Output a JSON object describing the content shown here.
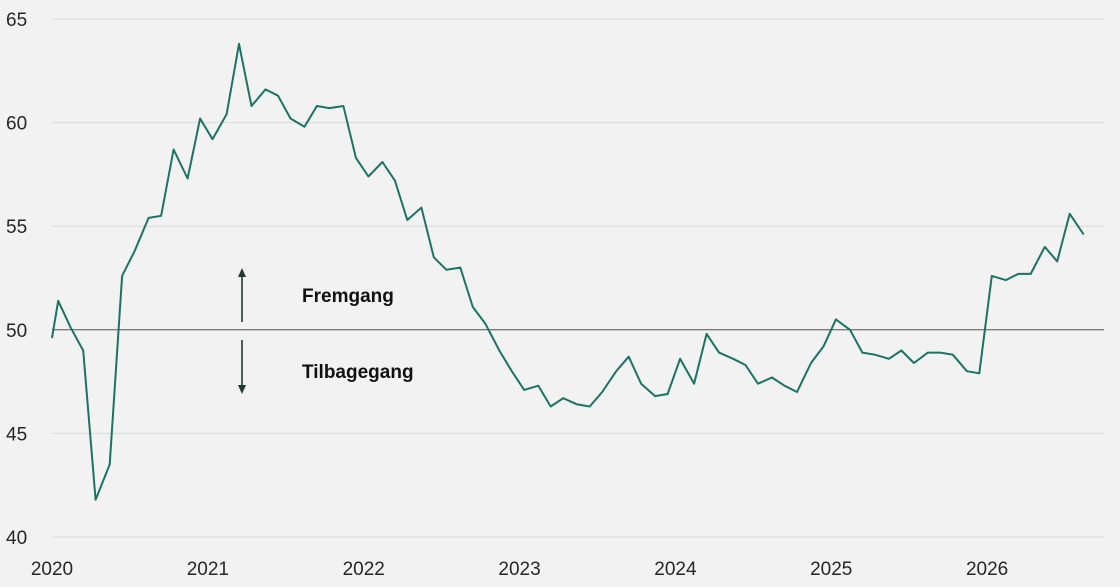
{
  "chart_data": {
    "type": "line",
    "title": "",
    "xlabel": "",
    "ylabel": "",
    "ylim": [
      40,
      65
    ],
    "yticks": [
      40,
      45,
      50,
      55,
      60,
      65
    ],
    "xlim": [
      2020,
      2026.75
    ],
    "xticks": [
      "2020",
      "2021",
      "2022",
      "2023",
      "2024",
      "2025",
      "2026"
    ],
    "grid": "horizontal",
    "reference_line": 50,
    "line_color": "#1a7363",
    "annotations": {
      "above": "Fremgang",
      "below": "Tilbagegang"
    },
    "series": [
      {
        "values": [
          [
            2020.0,
            49.6
          ],
          [
            2020.04,
            51.4
          ],
          [
            2020.12,
            50.1
          ],
          [
            2020.2,
            49.0
          ],
          [
            2020.28,
            41.8
          ],
          [
            2020.37,
            43.5
          ],
          [
            2020.45,
            52.6
          ],
          [
            2020.53,
            53.8
          ],
          [
            2020.62,
            55.4
          ],
          [
            2020.7,
            55.5
          ],
          [
            2020.78,
            58.7
          ],
          [
            2020.87,
            57.3
          ],
          [
            2020.95,
            60.2
          ],
          [
            2021.03,
            59.2
          ],
          [
            2021.12,
            60.4
          ],
          [
            2021.2,
            63.8
          ],
          [
            2021.28,
            60.8
          ],
          [
            2021.37,
            61.6
          ],
          [
            2021.45,
            61.3
          ],
          [
            2021.53,
            60.2
          ],
          [
            2021.62,
            59.8
          ],
          [
            2021.7,
            60.8
          ],
          [
            2021.78,
            60.7
          ],
          [
            2021.87,
            60.8
          ],
          [
            2021.95,
            58.3
          ],
          [
            2022.03,
            57.4
          ],
          [
            2022.12,
            58.1
          ],
          [
            2022.2,
            57.2
          ],
          [
            2022.28,
            55.3
          ],
          [
            2022.37,
            55.9
          ],
          [
            2022.45,
            53.5
          ],
          [
            2022.53,
            52.9
          ],
          [
            2022.62,
            53.0
          ],
          [
            2022.7,
            51.1
          ],
          [
            2022.78,
            50.3
          ],
          [
            2022.87,
            49.0
          ],
          [
            2022.95,
            48.0
          ],
          [
            2023.03,
            47.1
          ],
          [
            2023.12,
            47.3
          ],
          [
            2023.2,
            46.3
          ],
          [
            2023.28,
            46.7
          ],
          [
            2023.37,
            46.4
          ],
          [
            2023.45,
            46.3
          ],
          [
            2023.53,
            47.0
          ],
          [
            2023.62,
            48.0
          ],
          [
            2023.7,
            48.7
          ],
          [
            2023.78,
            47.4
          ],
          [
            2023.87,
            46.8
          ],
          [
            2023.95,
            46.9
          ],
          [
            2024.03,
            48.6
          ],
          [
            2024.12,
            47.4
          ],
          [
            2024.2,
            49.8
          ],
          [
            2024.28,
            48.9
          ],
          [
            2024.37,
            48.6
          ],
          [
            2024.45,
            48.3
          ],
          [
            2024.53,
            47.4
          ],
          [
            2024.62,
            47.7
          ],
          [
            2024.7,
            47.3
          ],
          [
            2024.78,
            47.0
          ],
          [
            2024.87,
            48.4
          ],
          [
            2024.95,
            49.2
          ],
          [
            2025.03,
            50.5
          ],
          [
            2025.12,
            50.0
          ],
          [
            2025.2,
            48.9
          ],
          [
            2025.28,
            48.8
          ],
          [
            2025.37,
            48.6
          ],
          [
            2025.45,
            49.0
          ],
          [
            2025.53,
            48.4
          ],
          [
            2025.62,
            48.9
          ],
          [
            2025.7,
            48.9
          ],
          [
            2025.78,
            48.8
          ],
          [
            2025.87,
            48.0
          ],
          [
            2025.95,
            47.9
          ],
          [
            2026.03,
            52.6
          ],
          [
            2026.12,
            52.4
          ],
          [
            2026.2,
            52.7
          ],
          [
            2026.28,
            52.7
          ],
          [
            2026.37,
            54.0
          ],
          [
            2026.45,
            53.3
          ],
          [
            2026.53,
            55.6
          ],
          [
            2026.62,
            54.6
          ]
        ]
      }
    ]
  }
}
